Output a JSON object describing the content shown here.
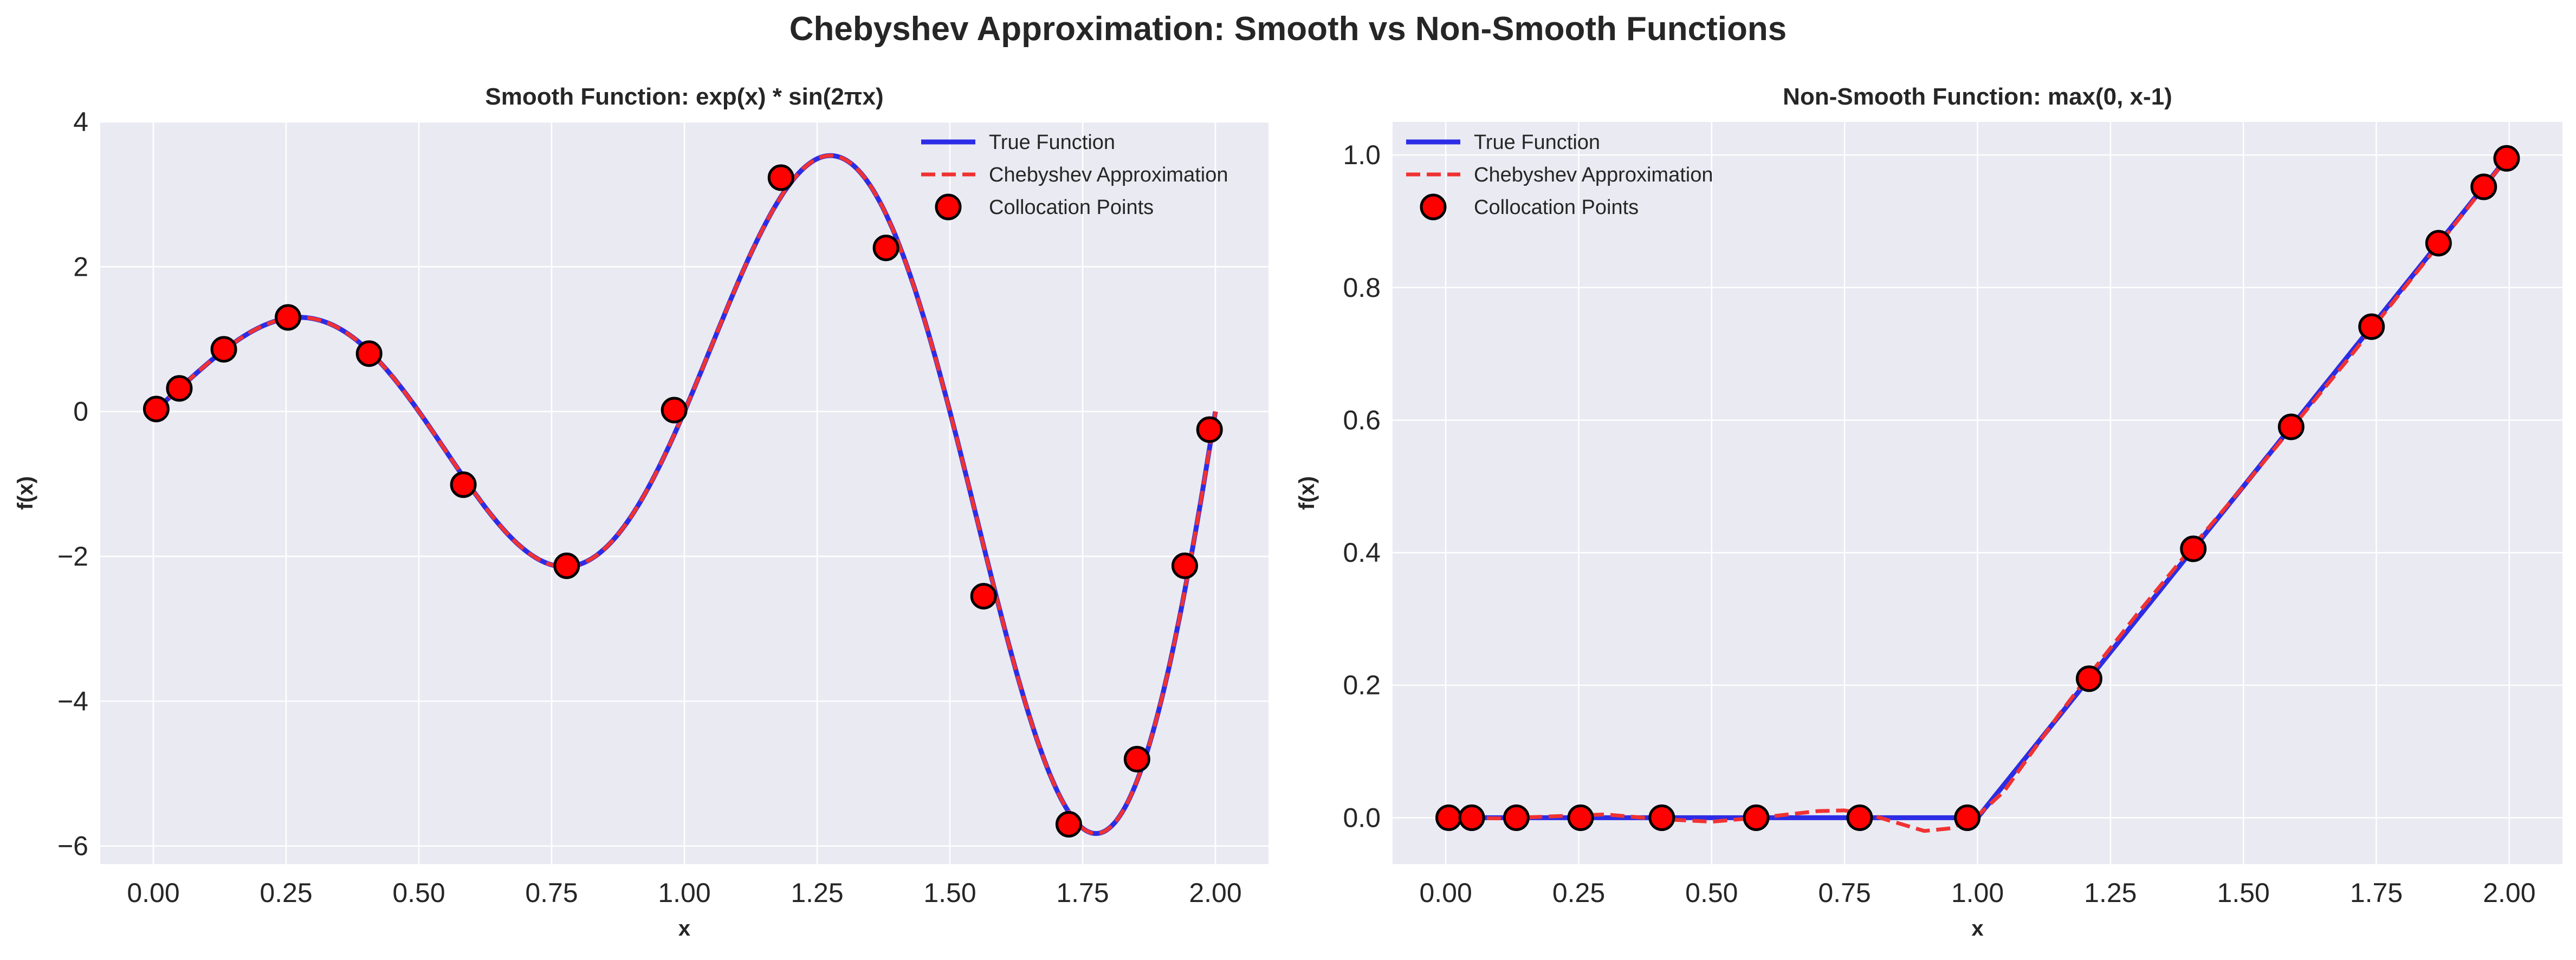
{
  "figure": {
    "suptitle": "Chebyshev Approximation: Smooth vs Non-Smooth Functions"
  },
  "colors": {
    "background": "#eaeaf2",
    "grid": "#ffffff",
    "true_function": "#2c2ce6",
    "approximation": "#f03232",
    "point_fill": "#ff0000",
    "point_edge": "#000000"
  },
  "chart_data": [
    {
      "type": "line",
      "title": "Smooth Function: exp(x) * sin(2πx)",
      "xlabel": "x",
      "ylabel": "f(x)",
      "xlim": [
        -0.1,
        2.1
      ],
      "ylim": [
        -6.25,
        4.0
      ],
      "xticks": [
        0.0,
        0.25,
        0.5,
        0.75,
        1.0,
        1.25,
        1.5,
        1.75,
        2.0
      ],
      "xtick_labels": [
        "0.00",
        "0.25",
        "0.50",
        "0.75",
        "1.00",
        "1.25",
        "1.50",
        "1.75",
        "2.00"
      ],
      "yticks": [
        -6,
        -4,
        -2,
        0,
        2,
        4
      ],
      "ytick_labels": [
        "−6",
        "−4",
        "−2",
        "0",
        "2",
        "4"
      ],
      "grid": true,
      "legend_position": "top-right",
      "function": "exp(x) * sin(2πx)",
      "x_range": [
        0,
        2
      ],
      "series": [
        {
          "name": "True Function",
          "style": "solid",
          "color": "#2c2ce6"
        },
        {
          "name": "Chebyshev Approximation",
          "style": "dashed",
          "color": "#f03232"
        },
        {
          "name": "Collocation Points",
          "style": "markers",
          "color": "#ff0000",
          "x": [
            0.0055,
            0.0489,
            0.1327,
            0.2536,
            0.4063,
            0.5838,
            0.7784,
            0.9808,
            1.1819,
            1.3797,
            1.5635,
            1.7239,
            1.8524,
            1.9423,
            1.989
          ],
          "y": [
            0.035,
            0.32,
            0.86,
            1.3,
            0.8,
            -1.01,
            -2.13,
            0.02,
            3.23,
            2.26,
            -2.55,
            -5.7,
            -4.8,
            -2.13,
            -0.25
          ]
        }
      ]
    },
    {
      "type": "line",
      "title": "Non-Smooth Function: max(0, x-1)",
      "xlabel": "x",
      "ylabel": "f(x)",
      "xlim": [
        -0.1,
        2.1
      ],
      "ylim": [
        -0.07,
        1.05
      ],
      "xticks": [
        0.0,
        0.25,
        0.5,
        0.75,
        1.0,
        1.25,
        1.5,
        1.75,
        2.0
      ],
      "xtick_labels": [
        "0.00",
        "0.25",
        "0.50",
        "0.75",
        "1.00",
        "1.25",
        "1.50",
        "1.75",
        "2.00"
      ],
      "yticks": [
        0.0,
        0.2,
        0.4,
        0.6,
        0.8,
        1.0
      ],
      "ytick_labels": [
        "0.0",
        "0.2",
        "0.4",
        "0.6",
        "0.8",
        "1.0"
      ],
      "grid": true,
      "legend_position": "top-left",
      "function": "max(0, x-1)",
      "x_range": [
        0,
        2
      ],
      "series": [
        {
          "name": "True Function",
          "style": "solid",
          "color": "#2c2ce6"
        },
        {
          "name": "Chebyshev Approximation",
          "style": "dashed",
          "color": "#f03232",
          "x": [
            0.0,
            0.1,
            0.2,
            0.3,
            0.4,
            0.5,
            0.6,
            0.7,
            0.75,
            0.8,
            0.85,
            0.9,
            0.95,
            1.0,
            1.05,
            1.1,
            1.15,
            1.2,
            1.3,
            1.4,
            1.5,
            1.6,
            1.7,
            1.8,
            1.9,
            2.0
          ],
          "y": [
            0.0,
            -0.001,
            0.002,
            0.005,
            -0.002,
            -0.006,
            0.001,
            0.01,
            0.011,
            0.004,
            -0.008,
            -0.02,
            -0.016,
            0.003,
            0.04,
            0.096,
            0.152,
            0.205,
            0.307,
            0.405,
            0.5,
            0.597,
            0.695,
            0.797,
            0.898,
            1.0
          ]
        },
        {
          "name": "Collocation Points",
          "style": "markers",
          "color": "#ff0000",
          "x": [
            0.0055,
            0.0489,
            0.1327,
            0.2536,
            0.4063,
            0.5838,
            0.7784,
            0.9808,
            1.2098,
            1.4058,
            1.5898,
            1.741,
            1.867,
            1.952,
            1.995
          ],
          "y": [
            0.0,
            0.0,
            0.0,
            0.0,
            0.0,
            0.0,
            0.0,
            0.0,
            0.2098,
            0.4058,
            0.5898,
            0.741,
            0.867,
            0.952,
            0.995
          ]
        }
      ]
    }
  ]
}
